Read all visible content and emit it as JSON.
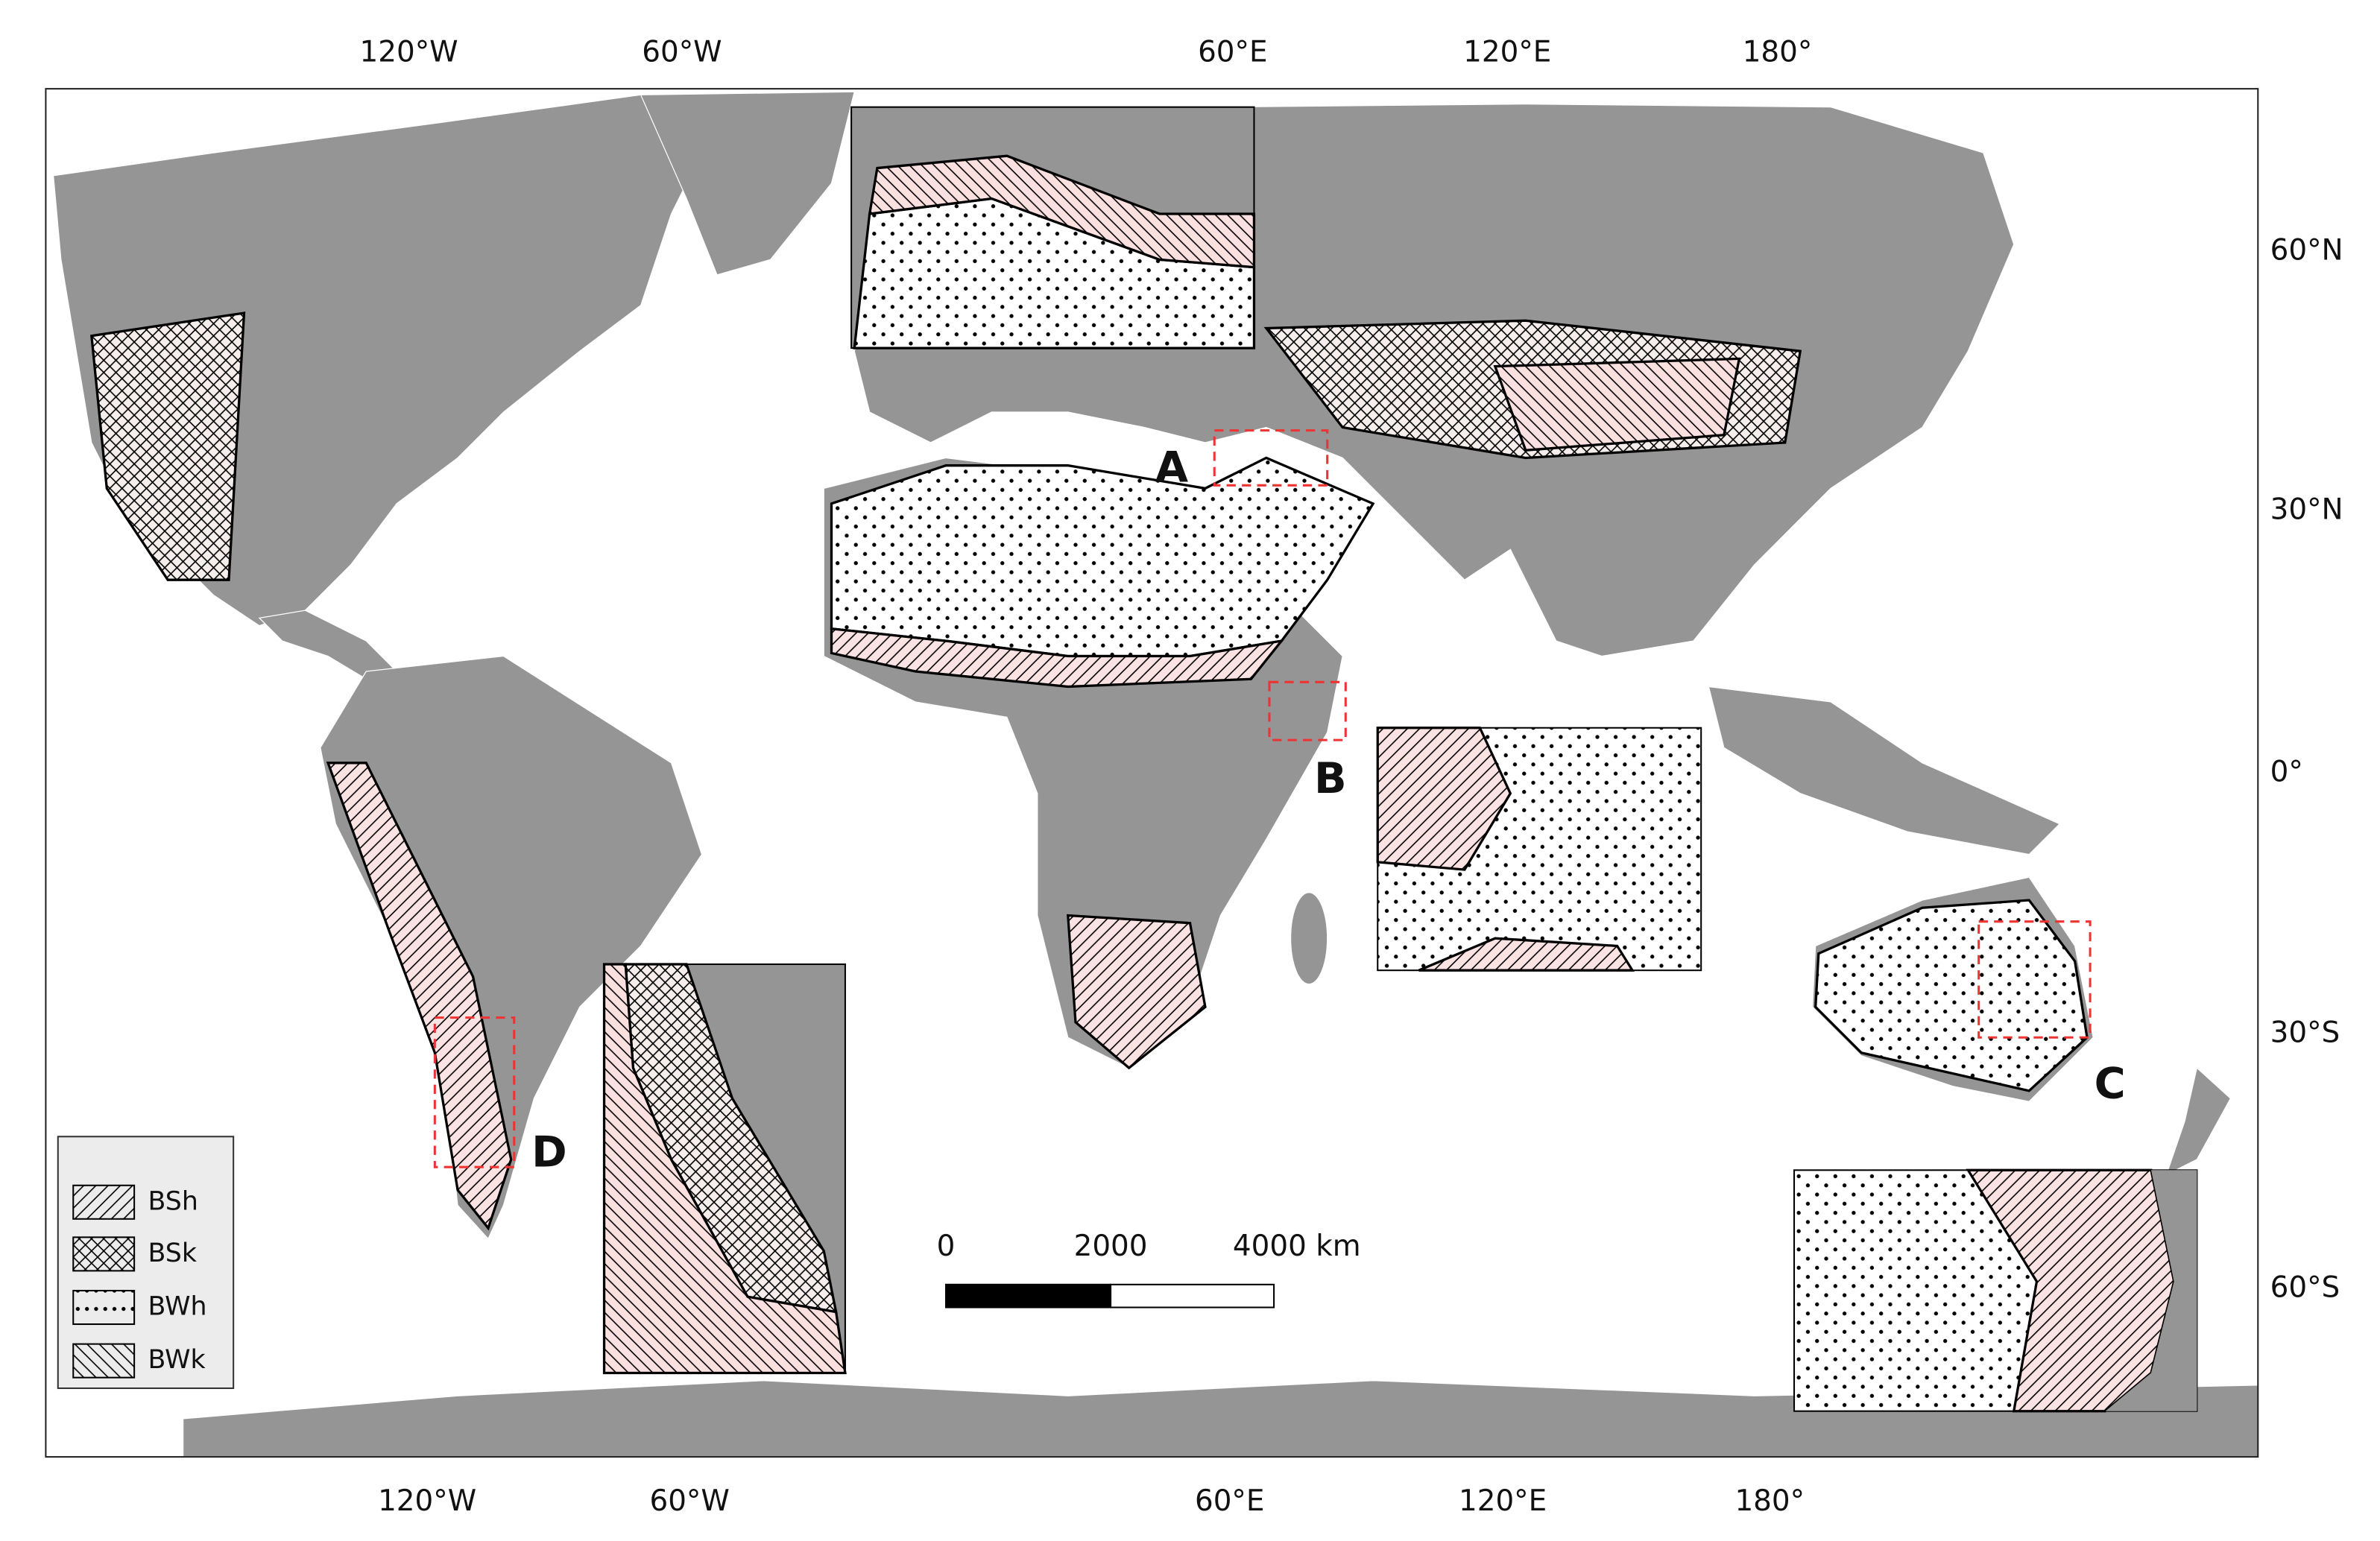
{
  "axis_labels": {
    "top": [
      "120°W",
      "60°W",
      "60°E",
      "120°E",
      "180°"
    ],
    "bottom": [
      "120°W",
      "60°W",
      "60°E",
      "120°E",
      "180°"
    ],
    "right": [
      "60°N",
      "30°N",
      "0°",
      "30°S",
      "60°S"
    ]
  },
  "insets": [
    "A",
    "B",
    "C",
    "D"
  ],
  "legend": [
    "BSh",
    "BSk",
    "BWh",
    "BWk"
  ],
  "scale_bar": {
    "labels": [
      "0",
      "2000",
      "4000 km"
    ]
  }
}
